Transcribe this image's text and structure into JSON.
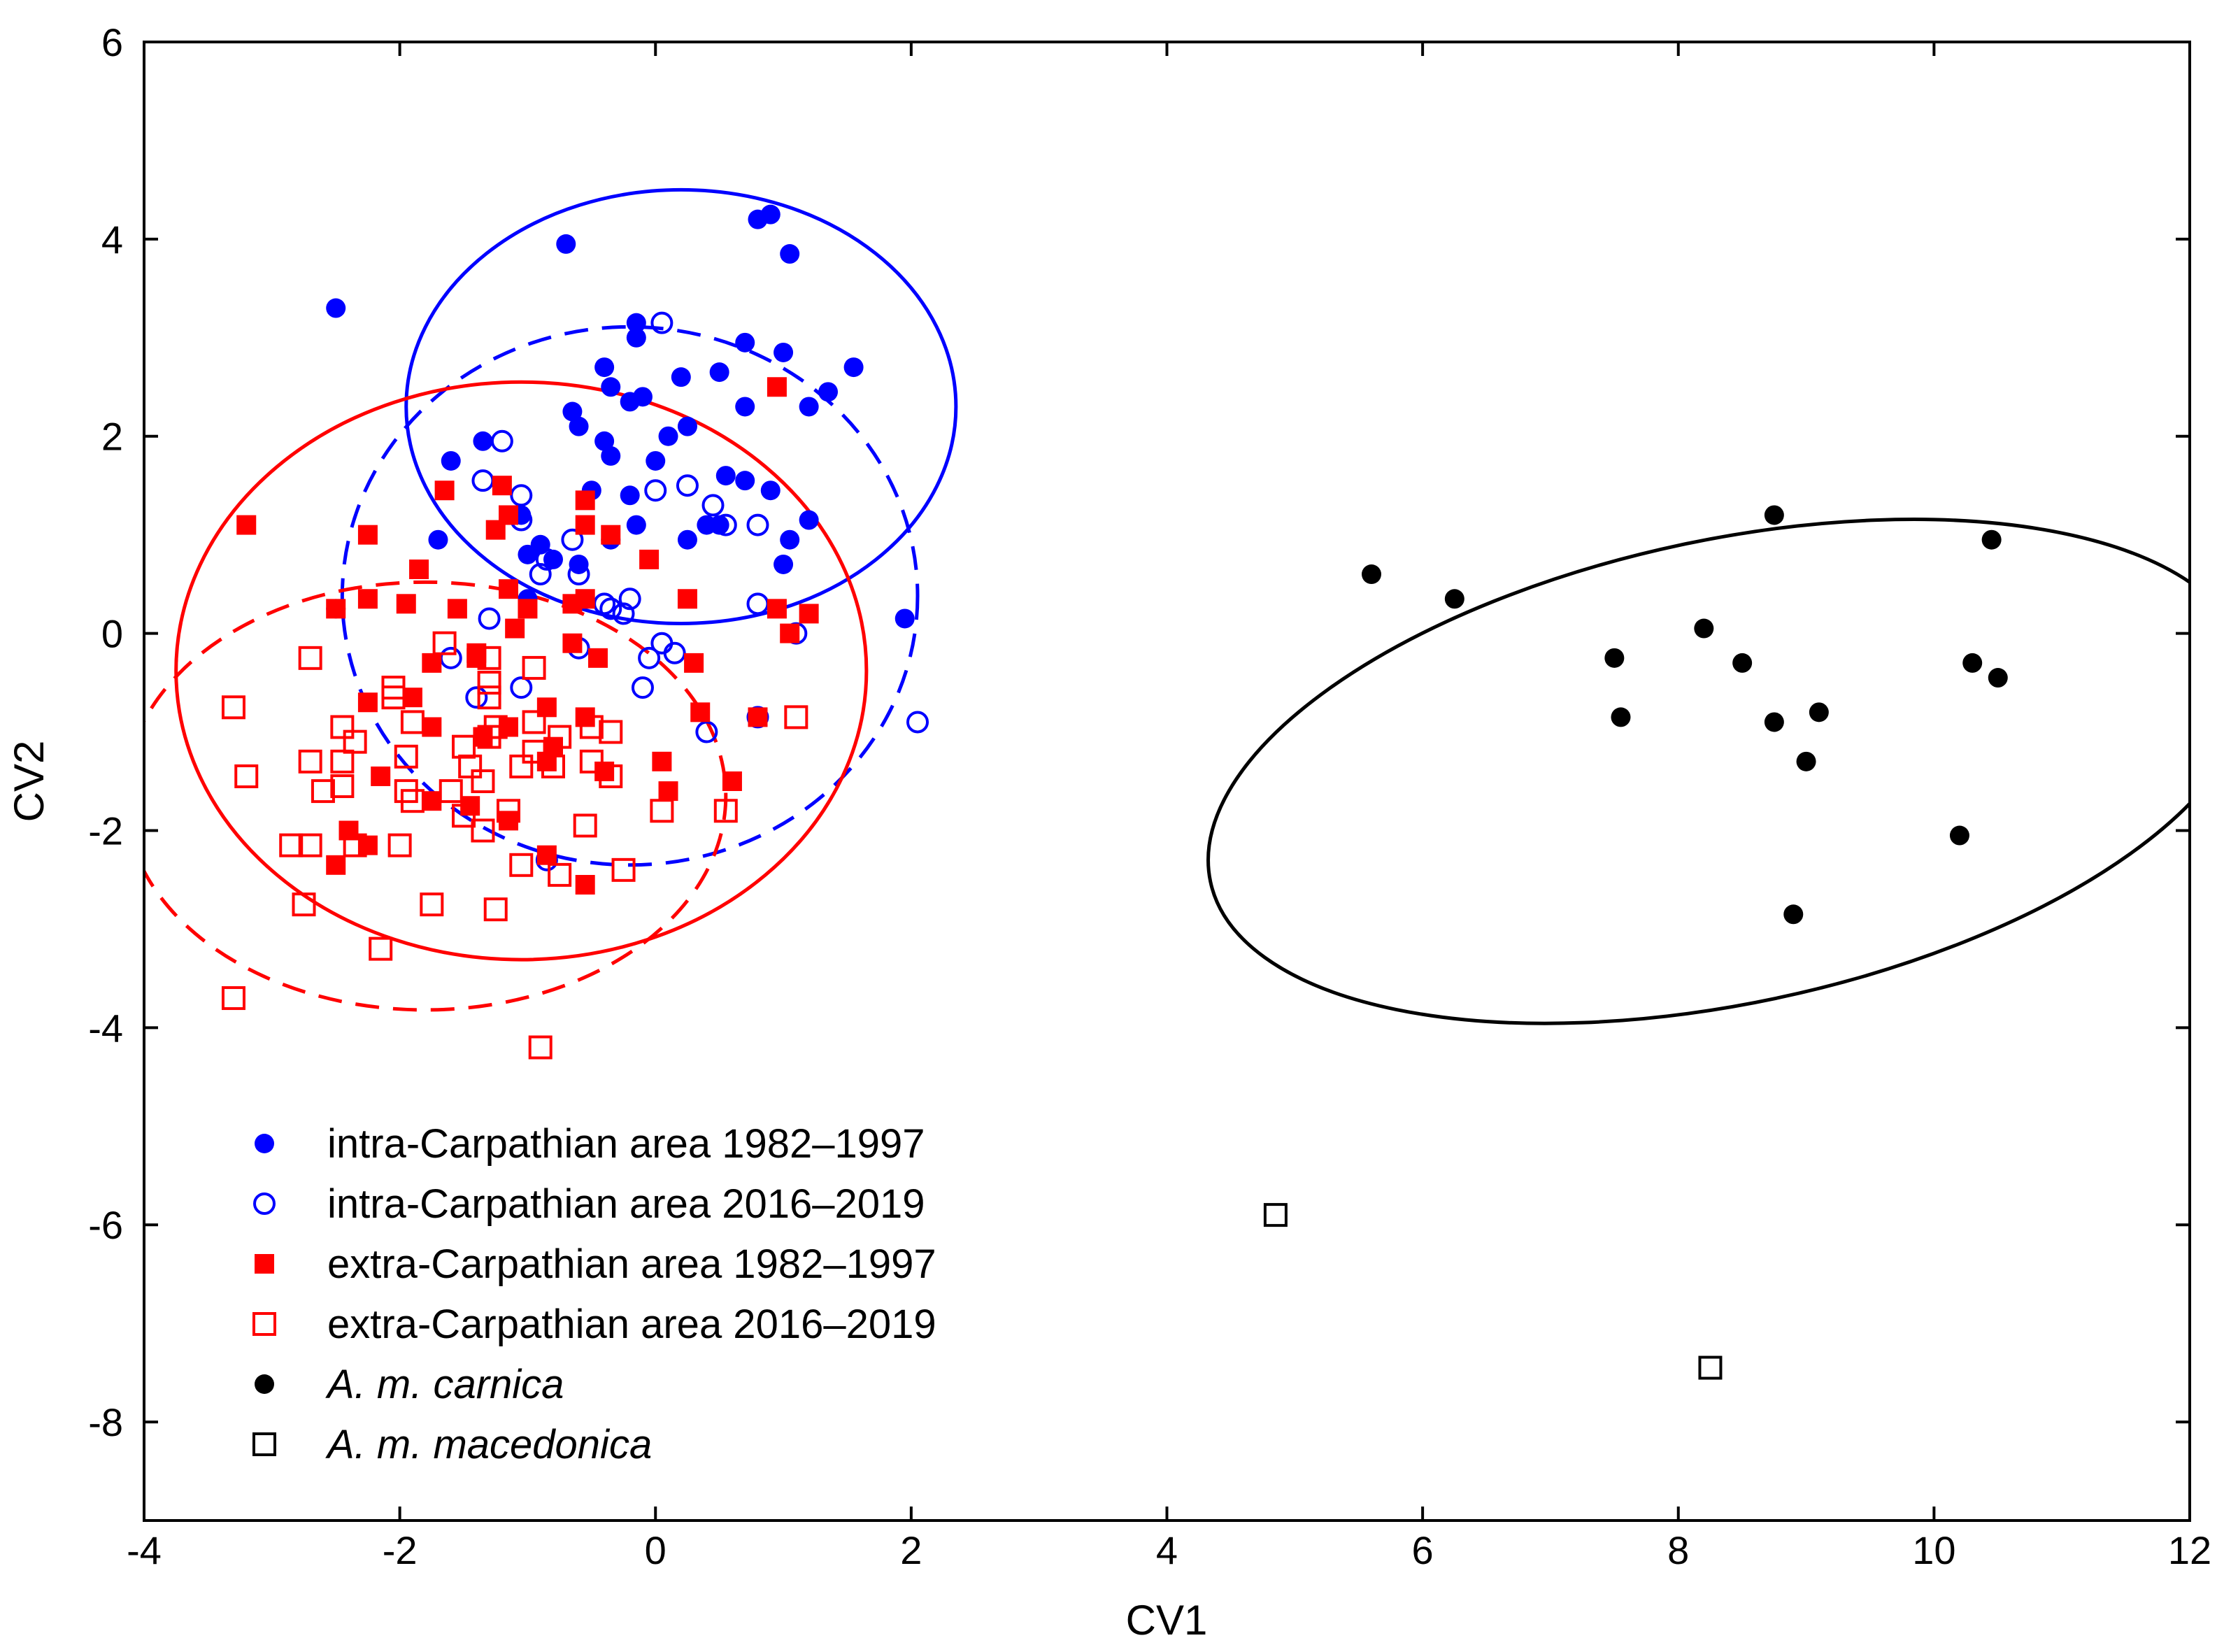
{
  "chart_data": {
    "type": "scatter",
    "title": "",
    "xlabel": "CV1",
    "ylabel": "CV2",
    "xlim": [
      -4,
      12
    ],
    "ylim": [
      -9,
      6
    ],
    "xticks": [
      "-4",
      "-2",
      "0",
      "2",
      "4",
      "6",
      "8",
      "10",
      "12"
    ],
    "yticks": [
      "-8",
      "-6",
      "-4",
      "-2",
      "0",
      "2",
      "4",
      "6"
    ],
    "xtick_values": [
      -4,
      -2,
      0,
      2,
      4,
      6,
      8,
      10,
      12
    ],
    "ytick_values": [
      -8,
      -6,
      -4,
      -2,
      0,
      2,
      4,
      6
    ],
    "legend_position": "bottom-left",
    "series": [
      {
        "name": "intra-Carpathian area 1982–1997",
        "color": "#0000ff",
        "marker": "filled-circle",
        "italic": false,
        "points": [
          [
            -2.5,
            3.3
          ],
          [
            -0.7,
            3.95
          ],
          [
            0.9,
            4.25
          ],
          [
            0.8,
            4.2
          ],
          [
            1.05,
            3.85
          ],
          [
            -0.15,
            3.15
          ],
          [
            -0.15,
            3.0
          ],
          [
            0.7,
            2.95
          ],
          [
            1.0,
            2.85
          ],
          [
            -0.4,
            2.7
          ],
          [
            0.2,
            2.6
          ],
          [
            0.5,
            2.65
          ],
          [
            1.55,
            2.7
          ],
          [
            1.35,
            2.45
          ],
          [
            -0.35,
            2.5
          ],
          [
            -0.65,
            2.25
          ],
          [
            -0.2,
            2.35
          ],
          [
            -0.1,
            2.4
          ],
          [
            0.7,
            2.3
          ],
          [
            1.2,
            2.3
          ],
          [
            -0.6,
            2.1
          ],
          [
            0.25,
            2.1
          ],
          [
            0.1,
            2.0
          ],
          [
            -0.4,
            1.95
          ],
          [
            -1.35,
            1.95
          ],
          [
            -1.6,
            1.75
          ],
          [
            -0.35,
            1.8
          ],
          [
            0.0,
            1.75
          ],
          [
            0.55,
            1.6
          ],
          [
            0.7,
            1.55
          ],
          [
            -0.5,
            1.45
          ],
          [
            0.9,
            1.45
          ],
          [
            -0.2,
            1.4
          ],
          [
            -1.05,
            1.2
          ],
          [
            -0.15,
            1.1
          ],
          [
            0.4,
            1.1
          ],
          [
            0.5,
            1.1
          ],
          [
            1.2,
            1.15
          ],
          [
            -1.7,
            0.95
          ],
          [
            0.25,
            0.95
          ],
          [
            1.05,
            0.95
          ],
          [
            -0.9,
            0.9
          ],
          [
            -0.35,
            0.95
          ],
          [
            -1.0,
            0.8
          ],
          [
            -0.8,
            0.75
          ],
          [
            -0.6,
            0.7
          ],
          [
            1.0,
            0.7
          ],
          [
            -1.0,
            0.35
          ],
          [
            1.95,
            0.15
          ],
          [
            -2.5,
            0.25
          ]
        ]
      },
      {
        "name": "intra-Carpathian area 2016–2019",
        "color": "#0000ff",
        "marker": "open-circle",
        "italic": false,
        "points": [
          [
            0.05,
            3.15
          ],
          [
            -1.2,
            1.95
          ],
          [
            -1.35,
            1.55
          ],
          [
            -1.05,
            1.4
          ],
          [
            0.25,
            1.5
          ],
          [
            0.0,
            1.45
          ],
          [
            -1.05,
            1.15
          ],
          [
            0.45,
            1.3
          ],
          [
            0.55,
            1.1
          ],
          [
            0.8,
            1.1
          ],
          [
            -0.65,
            0.95
          ],
          [
            -0.85,
            0.75
          ],
          [
            -0.6,
            0.6
          ],
          [
            -0.9,
            0.6
          ],
          [
            -0.35,
            0.25
          ],
          [
            -0.25,
            0.2
          ],
          [
            -0.4,
            0.3
          ],
          [
            -0.2,
            0.35
          ],
          [
            -1.3,
            0.15
          ],
          [
            0.8,
            0.3
          ],
          [
            1.1,
            0.0
          ],
          [
            -0.6,
            -0.15
          ],
          [
            0.05,
            -0.1
          ],
          [
            -0.05,
            -0.25
          ],
          [
            0.15,
            -0.2
          ],
          [
            -1.6,
            -0.25
          ],
          [
            -0.1,
            -0.55
          ],
          [
            -1.05,
            -0.55
          ],
          [
            -1.4,
            -0.65
          ],
          [
            0.4,
            -1.0
          ],
          [
            0.8,
            -0.85
          ],
          [
            2.05,
            -0.9
          ],
          [
            -0.85,
            -2.3
          ]
        ]
      },
      {
        "name": "extra-Carpathian area 1982–1997",
        "color": "#ff0000",
        "marker": "filled-square",
        "italic": false,
        "points": [
          [
            -3.2,
            1.1
          ],
          [
            -2.25,
            1.0
          ],
          [
            -1.65,
            1.45
          ],
          [
            -1.2,
            1.5
          ],
          [
            -1.15,
            1.2
          ],
          [
            -0.55,
            1.35
          ],
          [
            -0.55,
            1.1
          ],
          [
            -1.25,
            1.05
          ],
          [
            -0.35,
            1.0
          ],
          [
            -0.05,
            0.75
          ],
          [
            0.95,
            2.5
          ],
          [
            -1.85,
            0.65
          ],
          [
            -1.15,
            0.45
          ],
          [
            -0.55,
            0.35
          ],
          [
            0.25,
            0.35
          ],
          [
            -2.25,
            0.35
          ],
          [
            -1.95,
            0.3
          ],
          [
            -1.55,
            0.25
          ],
          [
            -1.0,
            0.25
          ],
          [
            -0.65,
            0.3
          ],
          [
            -2.5,
            0.25
          ],
          [
            0.95,
            0.25
          ],
          [
            1.2,
            0.2
          ],
          [
            -1.1,
            0.05
          ],
          [
            1.05,
            0.0
          ],
          [
            -0.65,
            -0.1
          ],
          [
            -1.4,
            -0.2
          ],
          [
            -1.4,
            -0.25
          ],
          [
            -0.45,
            -0.25
          ],
          [
            0.3,
            -0.3
          ],
          [
            -1.75,
            -0.3
          ],
          [
            -2.25,
            -0.7
          ],
          [
            -1.9,
            -0.65
          ],
          [
            -0.85,
            -0.75
          ],
          [
            -0.55,
            -0.85
          ],
          [
            -1.15,
            -0.95
          ],
          [
            -1.75,
            -0.95
          ],
          [
            0.35,
            -0.8
          ],
          [
            0.8,
            -0.85
          ],
          [
            -1.35,
            -1.05
          ],
          [
            -0.8,
            -1.15
          ],
          [
            -0.85,
            -1.3
          ],
          [
            -0.4,
            -1.4
          ],
          [
            0.05,
            -1.3
          ],
          [
            -2.15,
            -1.45
          ],
          [
            0.6,
            -1.5
          ],
          [
            0.1,
            -1.6
          ],
          [
            -1.75,
            -1.7
          ],
          [
            -1.45,
            -1.75
          ],
          [
            -1.15,
            -1.9
          ],
          [
            -2.4,
            -2.0
          ],
          [
            -2.25,
            -2.15
          ],
          [
            -2.5,
            -2.35
          ],
          [
            -0.85,
            -2.25
          ],
          [
            -0.55,
            -2.55
          ]
        ]
      },
      {
        "name": "extra-Carpathian area 2016–2019",
        "color": "#ff0000",
        "marker": "open-square",
        "italic": false,
        "points": [
          [
            -3.3,
            -0.75
          ],
          [
            -3.2,
            -1.45
          ],
          [
            -2.7,
            -0.25
          ],
          [
            -2.45,
            -0.95
          ],
          [
            -2.35,
            -1.1
          ],
          [
            -2.45,
            -1.3
          ],
          [
            -2.7,
            -1.3
          ],
          [
            -2.6,
            -1.6
          ],
          [
            -2.45,
            -1.55
          ],
          [
            -2.05,
            -0.55
          ],
          [
            -2.05,
            -0.65
          ],
          [
            -1.65,
            -0.1
          ],
          [
            -1.3,
            -0.25
          ],
          [
            -1.3,
            -0.5
          ],
          [
            -1.3,
            -0.65
          ],
          [
            -0.95,
            -0.35
          ],
          [
            -1.9,
            -0.9
          ],
          [
            -1.25,
            -0.95
          ],
          [
            -1.3,
            -1.05
          ],
          [
            -0.95,
            -0.9
          ],
          [
            -0.5,
            -0.95
          ],
          [
            -0.35,
            -1.0
          ],
          [
            -0.75,
            -1.05
          ],
          [
            -1.5,
            -1.15
          ],
          [
            -1.95,
            -1.25
          ],
          [
            -1.45,
            -1.35
          ],
          [
            -1.35,
            -1.5
          ],
          [
            -1.05,
            -1.35
          ],
          [
            -0.95,
            -1.2
          ],
          [
            -0.8,
            -1.35
          ],
          [
            -0.5,
            -1.3
          ],
          [
            -0.35,
            -1.45
          ],
          [
            -1.95,
            -1.6
          ],
          [
            -1.9,
            -1.7
          ],
          [
            -1.6,
            -1.6
          ],
          [
            -1.5,
            -1.85
          ],
          [
            -1.15,
            -1.8
          ],
          [
            -1.35,
            -2.0
          ],
          [
            -0.55,
            -1.95
          ],
          [
            0.05,
            -1.8
          ],
          [
            0.55,
            -1.8
          ],
          [
            1.1,
            -0.85
          ],
          [
            -2.85,
            -2.15
          ],
          [
            -2.7,
            -2.15
          ],
          [
            -2.35,
            -2.15
          ],
          [
            -2.0,
            -2.15
          ],
          [
            -1.05,
            -2.35
          ],
          [
            -0.75,
            -2.45
          ],
          [
            -0.25,
            -2.4
          ],
          [
            -2.75,
            -2.75
          ],
          [
            -1.75,
            -2.75
          ],
          [
            -1.25,
            -2.8
          ],
          [
            -2.15,
            -3.2
          ],
          [
            -3.3,
            -3.7
          ],
          [
            -0.9,
            -4.2
          ]
        ]
      },
      {
        "name": "A. m. carnica",
        "color": "#000000",
        "marker": "filled-circle",
        "italic": true,
        "points": [
          [
            5.6,
            0.6
          ],
          [
            6.25,
            0.35
          ],
          [
            8.75,
            1.2
          ],
          [
            10.45,
            0.95
          ],
          [
            8.2,
            0.05
          ],
          [
            7.5,
            -0.25
          ],
          [
            8.5,
            -0.3
          ],
          [
            10.3,
            -0.3
          ],
          [
            10.5,
            -0.45
          ],
          [
            7.55,
            -0.85
          ],
          [
            8.75,
            -0.9
          ],
          [
            9.1,
            -0.8
          ],
          [
            9.0,
            -1.3
          ],
          [
            10.2,
            -2.05
          ],
          [
            8.9,
            -2.85
          ]
        ]
      },
      {
        "name": "A. m. macedonica",
        "color": "#000000",
        "marker": "open-square",
        "italic": true,
        "points": [
          [
            4.85,
            -5.9
          ],
          [
            8.25,
            -7.45
          ]
        ]
      }
    ],
    "ellipses": [
      {
        "series": "intra-Carpathian area 1982–1997",
        "color": "#0000ff",
        "dash": "solid",
        "cx": 0.2,
        "cy": 2.3,
        "rx": 2.15,
        "ry": 2.2
      },
      {
        "series": "intra-Carpathian area 2016–2019",
        "color": "#0000ff",
        "dash": "dashed",
        "cx": -0.2,
        "cy": 0.38,
        "rx": 2.25,
        "ry": 2.73
      },
      {
        "series": "extra-Carpathian area 1982–1997",
        "color": "#ff0000",
        "dash": "solid",
        "cx": -1.05,
        "cy": -0.38,
        "rx": 2.7,
        "ry": 2.93
      },
      {
        "series": "extra-Carpathian area 2016–2019",
        "color": "#ff0000",
        "dash": "dashed",
        "cx": -1.8,
        "cy": -1.65,
        "rx": 2.35,
        "ry": 2.17
      },
      {
        "series": "A. m. carnica",
        "color": "#000000",
        "dash": "solid",
        "cx": 8.4,
        "cy": -1.4,
        "rx": 4.15,
        "ry": 2.35,
        "angle": -12
      }
    ]
  }
}
